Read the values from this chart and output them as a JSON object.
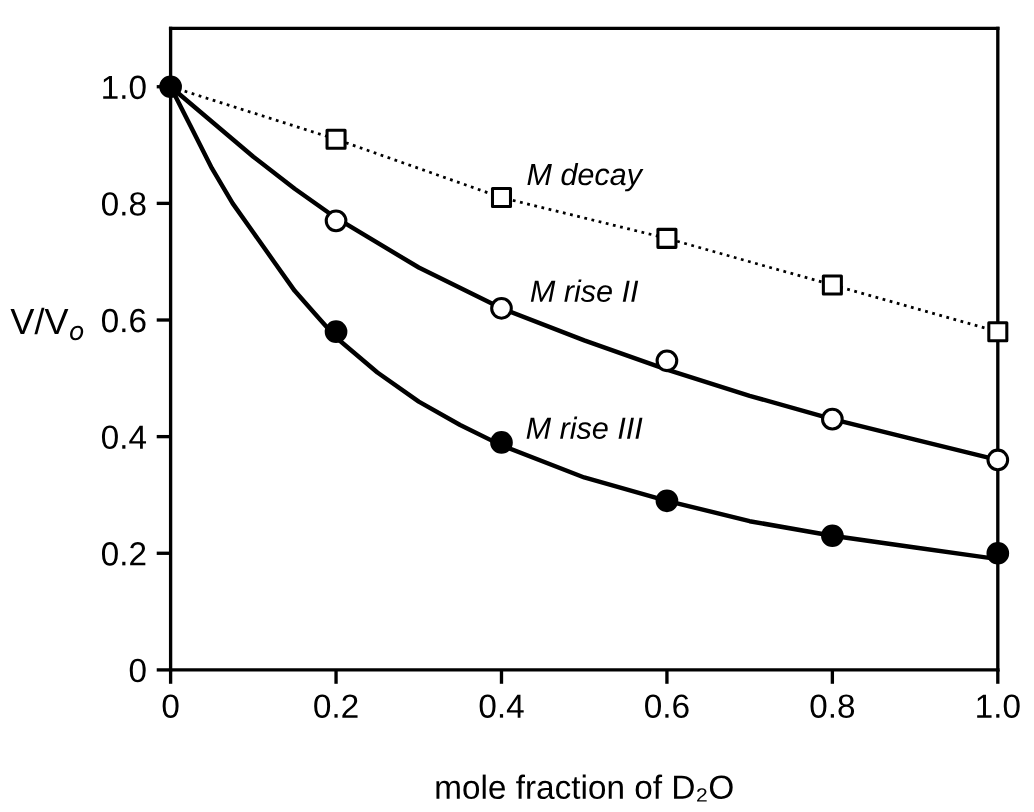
{
  "chart_data": {
    "type": "scatter",
    "xlabel": "mole fraction of D₂O",
    "ylabel": "V/V$_{o}$",
    "xlim": [
      0,
      1.0
    ],
    "ylim": [
      0,
      1.1
    ],
    "xticks": [
      0,
      0.2,
      0.4,
      0.6,
      0.8,
      {
        "value": 1.0,
        "label": "1.0"
      }
    ],
    "yticks": [
      0,
      0.2,
      0.4,
      0.6,
      0.8,
      {
        "value": 1.0,
        "label": "1.0"
      }
    ],
    "grid": false,
    "legend": false,
    "x": [
      0,
      0.2,
      0.4,
      0.6,
      0.8,
      1.0
    ],
    "series": [
      {
        "type": "line",
        "color": "#000000",
        "line_style": "dotted",
        "marker": "none",
        "x": [
          0,
          0.2,
          0.4,
          0.6,
          0.8,
          1.0
        ],
        "values": [
          1.0,
          0.91,
          0.81,
          0.74,
          0.66,
          0.58
        ]
      },
      {
        "type": "line",
        "color": "#000000",
        "line_style": "solid",
        "marker": "none",
        "x": [
          0,
          0.05,
          0.1,
          0.15,
          0.2,
          0.3,
          0.4,
          0.5,
          0.6,
          0.7,
          0.8,
          0.9,
          1.0
        ],
        "values": [
          1.0,
          0.94,
          0.88,
          0.825,
          0.775,
          0.69,
          0.62,
          0.565,
          0.515,
          0.47,
          0.43,
          0.395,
          0.36
        ]
      },
      {
        "type": "line",
        "color": "#000000",
        "line_style": "solid",
        "marker": "none",
        "x": [
          0,
          0.025,
          0.05,
          0.075,
          0.1,
          0.125,
          0.15,
          0.175,
          0.2,
          0.25,
          0.3,
          0.35,
          0.4,
          0.5,
          0.6,
          0.7,
          0.8,
          0.9,
          1.0
        ],
        "values": [
          1.0,
          0.93,
          0.86,
          0.8,
          0.75,
          0.7,
          0.65,
          0.61,
          0.57,
          0.51,
          0.46,
          0.42,
          0.385,
          0.33,
          0.29,
          0.255,
          0.23,
          0.21,
          0.19
        ]
      },
      {
        "name": "M decay",
        "color": "#000000",
        "marker": "square",
        "colors": [
          "#ffffff",
          "#ffffff",
          "#ffffff",
          "#ffffff",
          "#ffffff"
        ],
        "x": [
          0.2,
          0.4,
          0.6,
          0.8,
          1.0
        ],
        "values": [
          0.91,
          0.81,
          0.74,
          0.66,
          0.58
        ]
      },
      {
        "name": "M rise II",
        "color": "#000000",
        "marker": "circle",
        "colors": [
          "#ffffff",
          "#ffffff",
          "#ffffff",
          "#ffffff",
          "#ffffff"
        ],
        "x": [
          0.2,
          0.4,
          0.6,
          0.8,
          1.0
        ],
        "values": [
          0.77,
          0.62,
          0.53,
          0.43,
          0.36
        ]
      },
      {
        "name": "M rise III",
        "color": "#000000",
        "marker": "circle",
        "colors": [
          "#000000",
          "#000000",
          "#000000",
          "#000000",
          "#000000",
          "#000000"
        ],
        "values": [
          1.0,
          0.58,
          0.39,
          0.29,
          0.23,
          0.2
        ]
      }
    ]
  }
}
